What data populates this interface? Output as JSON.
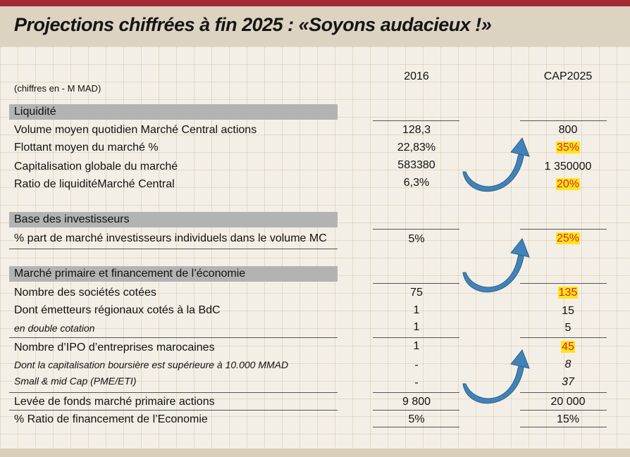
{
  "title": "Projections chiffrées à fin 2025 : «Soyons audacieux !»",
  "units": "(chiffres en - M MAD)",
  "columns": [
    "2016",
    "CAP2025"
  ],
  "sections": {
    "liquidite": {
      "label": "Liquidité",
      "rows": [
        {
          "label": "Volume moyen quotidien Marché Central actions",
          "v2016": "128,3",
          "v2025": "800"
        },
        {
          "label": "Flottant moyen du marché %",
          "v2016": "22,83%",
          "v2025": "35%"
        },
        {
          "label": "Capitalisation globale du marché",
          "v2016": "583380",
          "v2025": "1 350000"
        },
        {
          "label": "Ratio de liquiditéMarché Central",
          "v2016": "6,3%",
          "v2025": "20%"
        }
      ]
    },
    "investisseurs": {
      "label": "Base des investisseurs",
      "rows": [
        {
          "label": "% part de marché investisseurs individuels dans le volume MC",
          "v2016": "5%",
          "v2025": "25%"
        }
      ]
    },
    "primaire": {
      "label": "Marché primaire et financement de l’économie",
      "rows": [
        {
          "label": "Nombre des sociétés cotées",
          "v2016": "75",
          "v2025": "135"
        },
        {
          "label": "Dont émetteurs régionaux cotés à la BdC",
          "v2016": "1",
          "v2025": "15"
        },
        {
          "label": "en double cotation",
          "v2016": "1",
          "v2025": "5"
        },
        {
          "label": "Nombre d’IPO d’entreprises marocaines",
          "v2016": "1",
          "v2025": "45"
        },
        {
          "label": "Dont la capitalisation boursière est supérieure à 10.000 MMAD",
          "v2016": "-",
          "v2025": "8"
        },
        {
          "label": "Small & mid Cap (PME/ETI)",
          "v2016": "-",
          "v2025": "37"
        },
        {
          "label": "Levée de fonds marché primaire actions",
          "v2016": "9 800",
          "v2025": "20 000"
        },
        {
          "label": "% Ratio de financement de l’Economie",
          "v2016": "5%",
          "v2025": "15%"
        }
      ]
    }
  },
  "colors": {
    "accent_bar": "#a32a32",
    "highlight": "#ffe41a",
    "highlight_text": "#d6262a",
    "arrow": "#3f83b9"
  }
}
